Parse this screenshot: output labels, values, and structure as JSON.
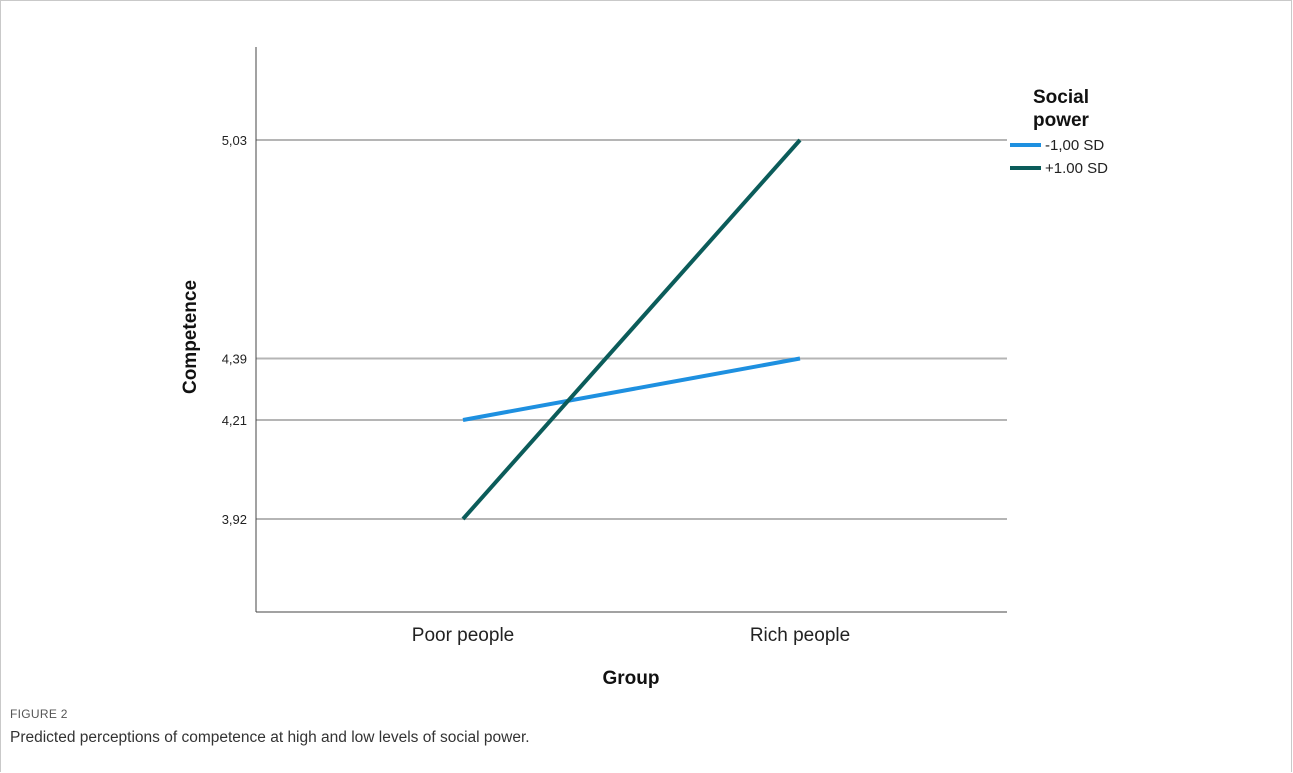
{
  "figure": {
    "label": "FIGURE 2",
    "caption": "Predicted perceptions of competence at high and low levels of social power."
  },
  "chart_data": {
    "type": "line",
    "xlabel": "Group",
    "ylabel": "Competence",
    "categories": [
      "Poor people",
      "Rich people"
    ],
    "y_ticks": [
      {
        "value": 3.92,
        "label": "3,92"
      },
      {
        "value": 4.21,
        "label": "4,21"
      },
      {
        "value": 4.39,
        "label": "4,39"
      },
      {
        "value": 5.03,
        "label": "5,03"
      }
    ],
    "ylim": [
      3.72,
      5.33
    ],
    "grid": true,
    "legend_title": "Social power",
    "legend_position": "top-right",
    "series": [
      {
        "name": "-1,00 SD",
        "color": "#1e90e0",
        "values": [
          4.21,
          4.39
        ]
      },
      {
        "name": "+1.00 SD",
        "color": "#0b5c5a",
        "values": [
          3.92,
          5.03
        ]
      }
    ]
  }
}
